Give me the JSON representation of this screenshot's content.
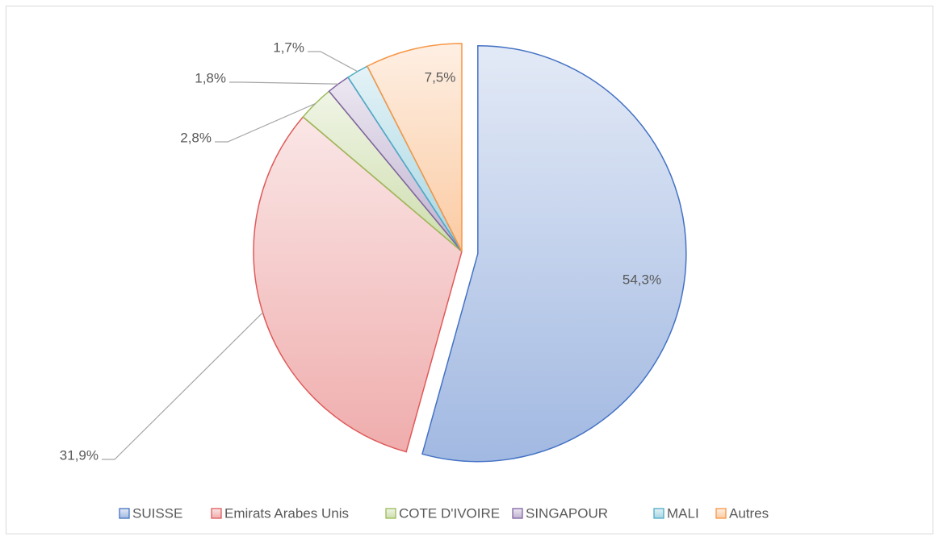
{
  "chart_data": {
    "type": "pie",
    "categories": [
      "SUISSE",
      "Emirats Arabes Unis",
      "COTE D'IVOIRE",
      "SINGAPOUR",
      "MALI",
      "Autres"
    ],
    "values": [
      54.3,
      31.9,
      2.8,
      1.8,
      1.7,
      7.5
    ],
    "value_labels": [
      "54,3%",
      "31,9%",
      "2,8%",
      "1,8%",
      "1,7%",
      "7,5%"
    ],
    "colors": [
      "#4472c4",
      "#e05a5a",
      "#9bbb59",
      "#8064a2",
      "#4bacc6",
      "#f79646"
    ],
    "legend": "bottom"
  }
}
